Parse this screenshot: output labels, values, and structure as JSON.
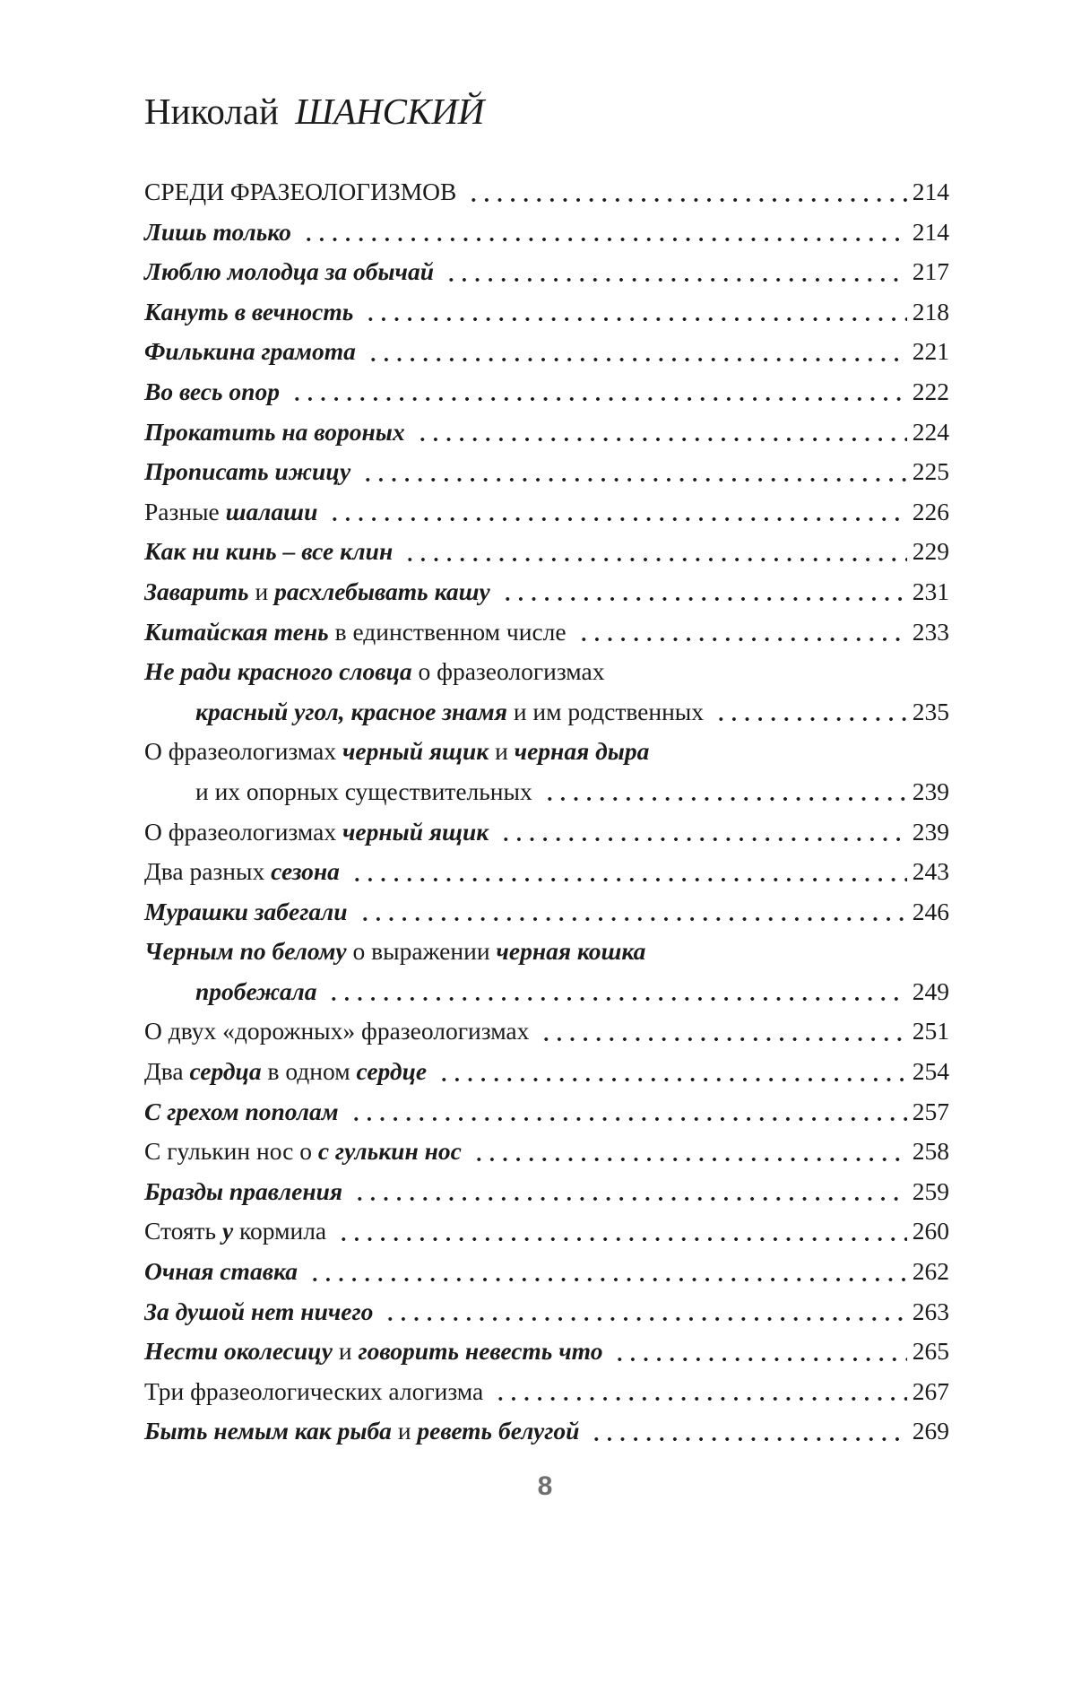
{
  "header": {
    "author_first_name": "Николай",
    "author_last_name": "ШАНСКИЙ"
  },
  "footer": {
    "page_number": "8"
  },
  "colors": {
    "text": "#1b1b1b",
    "footer_page_number": "#6f6f6f",
    "background": "#ffffff"
  },
  "toc": {
    "entries": [
      {
        "indent": false,
        "page": "214",
        "segments": [
          {
            "text": "СРЕДИ ФРАЗЕОЛОГИЗМОВ",
            "style": "regular"
          }
        ]
      },
      {
        "indent": false,
        "page": "214",
        "segments": [
          {
            "text": "Лишь только",
            "style": "bold-italic"
          }
        ]
      },
      {
        "indent": false,
        "page": "217",
        "segments": [
          {
            "text": "Люблю молодца за обычай",
            "style": "bold-italic"
          }
        ]
      },
      {
        "indent": false,
        "page": "218",
        "segments": [
          {
            "text": "Кануть в вечность",
            "style": "bold-italic"
          }
        ]
      },
      {
        "indent": false,
        "page": "221",
        "segments": [
          {
            "text": "Филькина грамота",
            "style": "bold-italic"
          }
        ]
      },
      {
        "indent": false,
        "page": "222",
        "segments": [
          {
            "text": "Во весь опор",
            "style": "bold-italic"
          }
        ]
      },
      {
        "indent": false,
        "page": "224",
        "segments": [
          {
            "text": "Прокатить на вороных",
            "style": "bold-italic"
          }
        ]
      },
      {
        "indent": false,
        "page": "225",
        "segments": [
          {
            "text": "Прописать ижицу",
            "style": "bold-italic"
          }
        ]
      },
      {
        "indent": false,
        "page": "226",
        "segments": [
          {
            "text": "Разные",
            "style": "regular"
          },
          {
            "text": "шалаши",
            "style": "bold-italic"
          }
        ]
      },
      {
        "indent": false,
        "page": "229",
        "segments": [
          {
            "text": "Как ни кинь – все клин",
            "style": "bold-italic"
          }
        ]
      },
      {
        "indent": false,
        "page": "231",
        "segments": [
          {
            "text": "Заварить",
            "style": "bold-italic"
          },
          {
            "text": "и",
            "style": "regular"
          },
          {
            "text": "расхлебывать кашу",
            "style": "bold-italic"
          }
        ]
      },
      {
        "indent": false,
        "page": "233",
        "segments": [
          {
            "text": "Китайская тень",
            "style": "bold-italic"
          },
          {
            "text": "в единственном числе",
            "style": "regular"
          }
        ]
      },
      {
        "indent": false,
        "page": null,
        "segments": [
          {
            "text": "Не ради красного словца",
            "style": "bold-italic"
          },
          {
            "text": "о фразеологизмах",
            "style": "regular"
          }
        ]
      },
      {
        "indent": true,
        "page": "235",
        "segments": [
          {
            "text": "красный угол, красное знамя",
            "style": "bold-italic"
          },
          {
            "text": "и им родственных",
            "style": "regular"
          }
        ]
      },
      {
        "indent": false,
        "page": null,
        "segments": [
          {
            "text": "О фразеологизмах",
            "style": "regular"
          },
          {
            "text": "черный ящик",
            "style": "bold-italic"
          },
          {
            "text": "и",
            "style": "regular"
          },
          {
            "text": "черная дыра",
            "style": "bold-italic"
          }
        ]
      },
      {
        "indent": true,
        "page": "239",
        "segments": [
          {
            "text": "и их опорных существительных",
            "style": "regular"
          }
        ]
      },
      {
        "indent": false,
        "page": "239",
        "segments": [
          {
            "text": "О фразеологизмах",
            "style": "regular"
          },
          {
            "text": "черный ящик",
            "style": "bold-italic"
          }
        ]
      },
      {
        "indent": false,
        "page": "243",
        "segments": [
          {
            "text": "Два разных",
            "style": "regular"
          },
          {
            "text": "сезона",
            "style": "bold-italic"
          }
        ]
      },
      {
        "indent": false,
        "page": "246",
        "segments": [
          {
            "text": "Мурашки забегали",
            "style": "bold-italic"
          }
        ]
      },
      {
        "indent": false,
        "page": null,
        "segments": [
          {
            "text": "Черным по белому",
            "style": "bold-italic"
          },
          {
            "text": "о выражении",
            "style": "regular"
          },
          {
            "text": "черная кошка",
            "style": "bold-italic"
          }
        ]
      },
      {
        "indent": true,
        "page": "249",
        "segments": [
          {
            "text": "пробежала",
            "style": "bold-italic"
          }
        ]
      },
      {
        "indent": false,
        "page": "251",
        "segments": [
          {
            "text": "О двух «дорожных» фразеологизмах",
            "style": "regular"
          }
        ]
      },
      {
        "indent": false,
        "page": "254",
        "segments": [
          {
            "text": "Два",
            "style": "regular"
          },
          {
            "text": "сердца",
            "style": "bold-italic"
          },
          {
            "text": "в одном",
            "style": "regular"
          },
          {
            "text": "сердце",
            "style": "bold-italic"
          }
        ]
      },
      {
        "indent": false,
        "page": "257",
        "segments": [
          {
            "text": "С грехом пополам",
            "style": "bold-italic"
          }
        ]
      },
      {
        "indent": false,
        "page": "258",
        "segments": [
          {
            "text": "С гулькин нос о",
            "style": "regular"
          },
          {
            "text": "с гулькин нос",
            "style": "bold-italic"
          }
        ]
      },
      {
        "indent": false,
        "page": "259",
        "segments": [
          {
            "text": "Бразды правления",
            "style": "bold-italic"
          }
        ]
      },
      {
        "indent": false,
        "page": "260",
        "segments": [
          {
            "text": "Стоять",
            "style": "regular"
          },
          {
            "text": "у",
            "style": "bold-italic"
          },
          {
            "text": "кормила",
            "style": "regular"
          }
        ]
      },
      {
        "indent": false,
        "page": "262",
        "segments": [
          {
            "text": "Очная ставка",
            "style": "bold-italic"
          }
        ]
      },
      {
        "indent": false,
        "page": "263",
        "segments": [
          {
            "text": "За душой нет ничего",
            "style": "bold-italic"
          }
        ]
      },
      {
        "indent": false,
        "page": "265",
        "segments": [
          {
            "text": "Нести околесицу",
            "style": "bold-italic"
          },
          {
            "text": "и",
            "style": "regular"
          },
          {
            "text": "говорить невесть что",
            "style": "bold-italic"
          }
        ]
      },
      {
        "indent": false,
        "page": "267",
        "segments": [
          {
            "text": "Три фразеологических алогизма",
            "style": "regular"
          }
        ]
      },
      {
        "indent": false,
        "page": "269",
        "segments": [
          {
            "text": "Быть немым как рыба",
            "style": "bold-italic"
          },
          {
            "text": "и",
            "style": "regular"
          },
          {
            "text": "реветь белугой",
            "style": "bold-italic"
          }
        ]
      }
    ]
  }
}
